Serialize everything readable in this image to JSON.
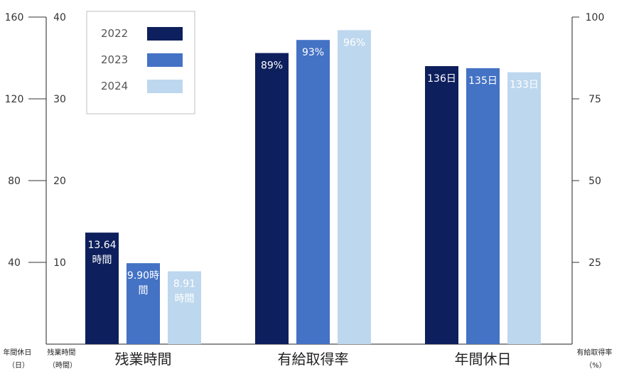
{
  "chart_data": {
    "type": "bar",
    "categories": [
      "残業時間",
      "有給取得率",
      "年間休日"
    ],
    "series": [
      {
        "name": "2022",
        "color": "#0d1f5c",
        "label_color": "#ffffff"
      },
      {
        "name": "2023",
        "color": "#4472c4",
        "label_color": "#ffffff"
      },
      {
        "name": "2024",
        "color": "#bdd7ee",
        "label_color": "#ffffff"
      }
    ],
    "groups": [
      {
        "category": "残業時間",
        "axis": "overtime",
        "values": [
          13.64,
          9.9,
          8.91
        ],
        "labels": [
          [
            "13.64",
            "時間"
          ],
          [
            "9.90時",
            "間"
          ],
          [
            "8.91",
            "時間"
          ]
        ]
      },
      {
        "category": "有給取得率",
        "axis": "leave_rate",
        "values": [
          89,
          93,
          96
        ],
        "labels": [
          [
            "89%"
          ],
          [
            "93%"
          ],
          [
            "96%"
          ]
        ]
      },
      {
        "category": "年間休日",
        "axis": "holidays",
        "values": [
          136,
          135,
          133
        ],
        "labels": [
          [
            "136日"
          ],
          [
            "135日"
          ],
          [
            "133日"
          ]
        ]
      }
    ],
    "axes": {
      "holidays": {
        "title": [
          "年間休日",
          "（日）"
        ],
        "range": [
          0,
          160
        ],
        "ticks": [
          "40",
          "80",
          "120",
          "160"
        ]
      },
      "overtime": {
        "title": [
          "残業時間",
          "（時間）"
        ],
        "range": [
          0,
          40
        ],
        "ticks": [
          "10",
          "20",
          "30",
          "40"
        ]
      },
      "leave_rate": {
        "title": [
          "有給取得率",
          "（%）"
        ],
        "range": [
          0,
          100
        ],
        "ticks": [
          "25",
          "50",
          "75",
          "100"
        ]
      }
    },
    "legend": {
      "position": "top-left",
      "entries": [
        "2022",
        "2023",
        "2024"
      ]
    },
    "grid": false
  }
}
